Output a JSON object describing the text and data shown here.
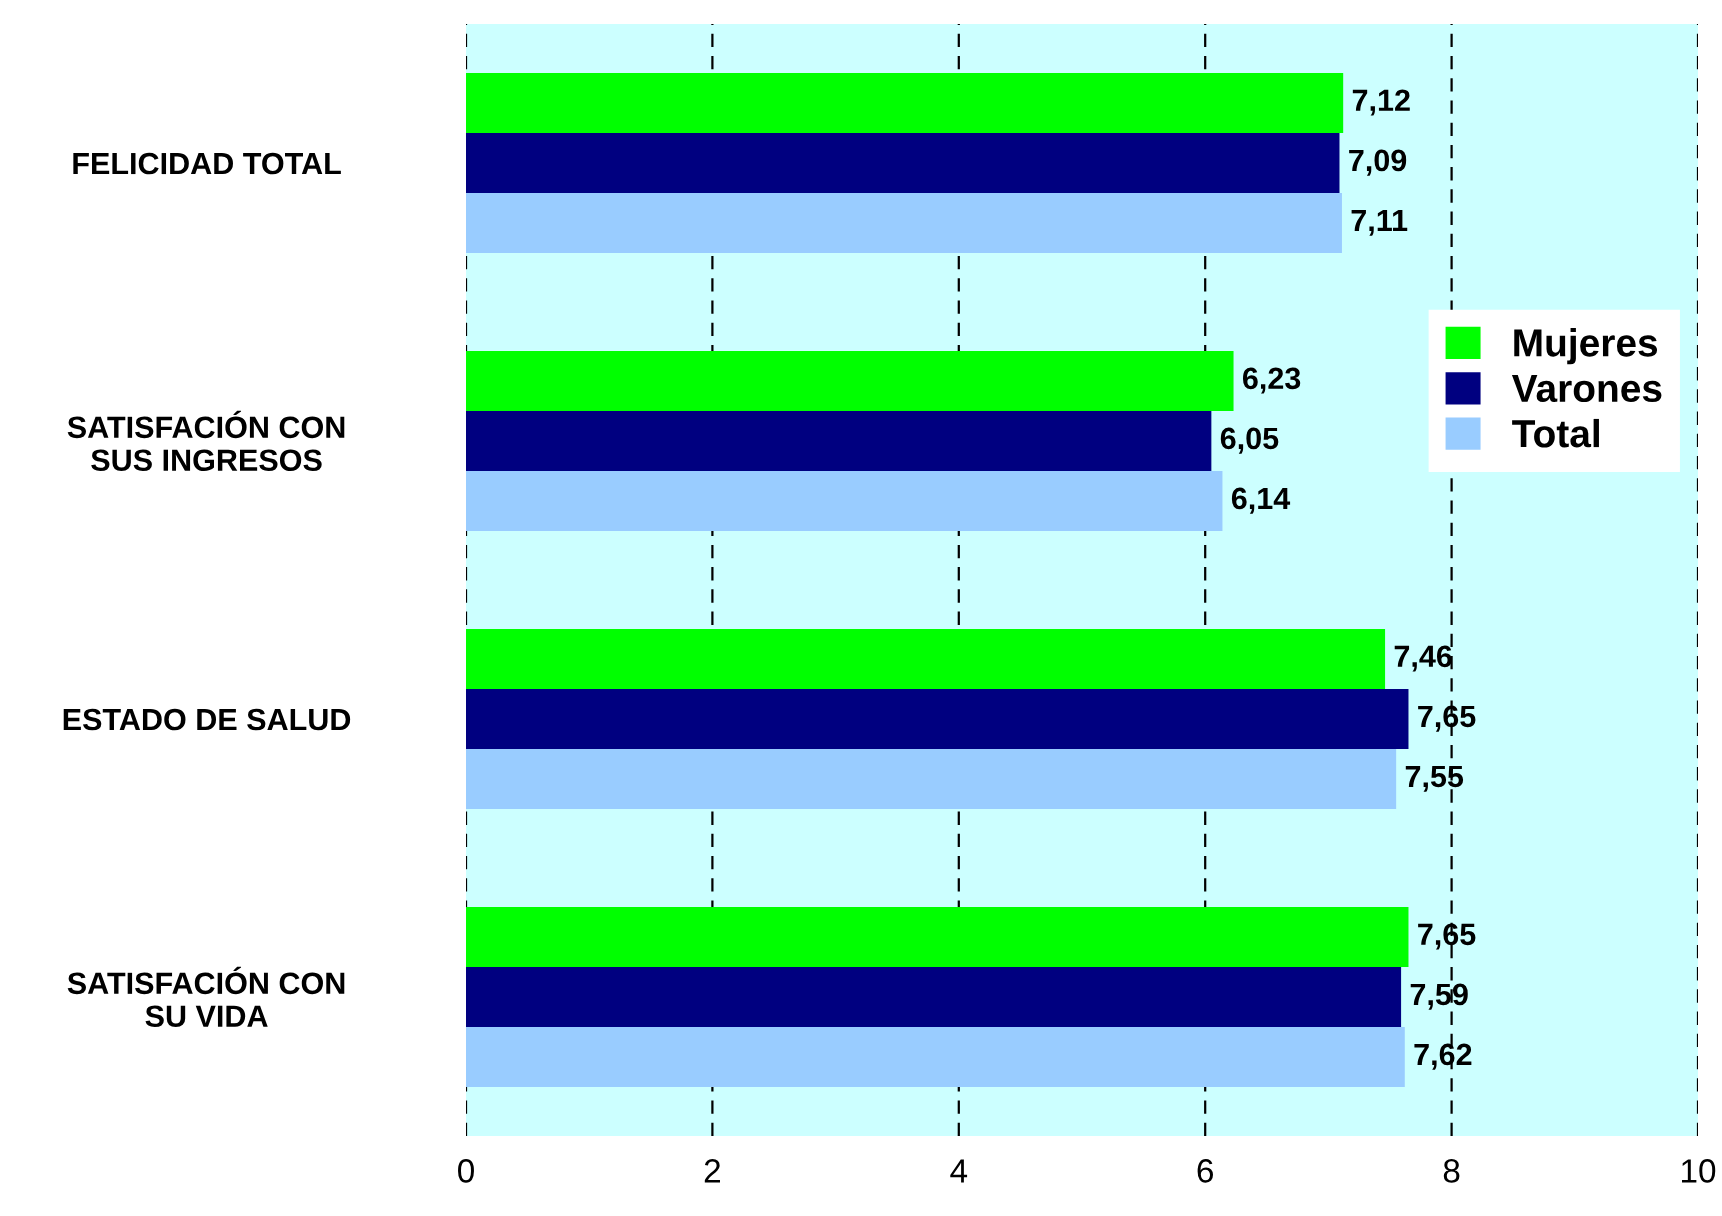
{
  "chart_data": {
    "type": "bar",
    "orientation": "horizontal",
    "categories": [
      "FELICIDAD TOTAL",
      "SATISFACIÓN CON\nSUS INGRESOS",
      "ESTADO DE SALUD",
      "SATISFACIÓN CON\nSU VIDA"
    ],
    "series": [
      {
        "name": "Mujeres",
        "color": "#00ff00",
        "values": [
          7.12,
          6.23,
          7.46,
          7.65
        ],
        "value_labels": [
          "7,12",
          "6,23",
          "7,46",
          "7,65"
        ]
      },
      {
        "name": "Varones",
        "color": "#000080",
        "values": [
          7.09,
          6.05,
          7.65,
          7.59
        ],
        "value_labels": [
          "7,09",
          "6,05",
          "7,65",
          "7,59"
        ]
      },
      {
        "name": "Total",
        "color": "#99ccff",
        "values": [
          7.11,
          6.14,
          7.55,
          7.62
        ],
        "value_labels": [
          "7,11",
          "6,14",
          "7,55",
          "7,62"
        ]
      }
    ],
    "xlim": [
      0,
      10
    ],
    "xticks": [
      0,
      2,
      4,
      6,
      8,
      10
    ],
    "grid": "x",
    "legend": "right"
  }
}
